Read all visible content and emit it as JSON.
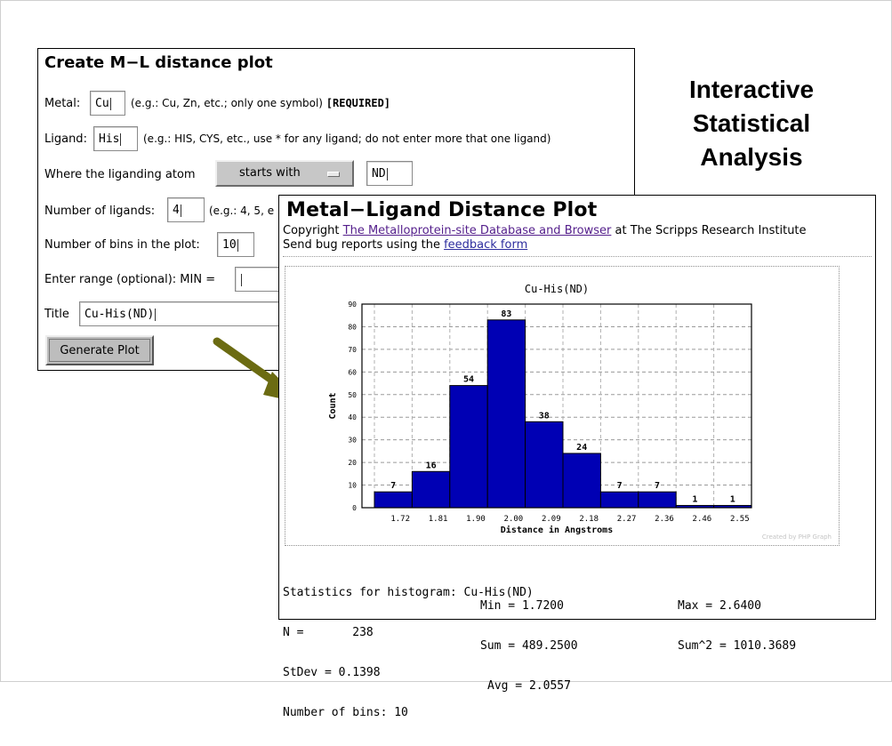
{
  "form": {
    "title": "Create M−L distance plot",
    "metal_label": "Metal:",
    "metal_value": "Cu",
    "metal_hint": "(e.g.: Cu, Zn, etc.; only one symbol)",
    "metal_required": "[REQUIRED]",
    "ligand_label": "Ligand:",
    "ligand_value": "His",
    "ligand_hint": "(e.g.: HIS, CYS, etc., use * for any ligand; do not enter more that one ligand)",
    "liganding_label": "Where the liganding atom",
    "liganding_select": "starts with",
    "liganding_value": "ND",
    "num_ligands_label": "Number of ligands:",
    "num_ligands_value": "4",
    "num_ligands_hint": "(e.g.: 4, 5, e",
    "bins_label": "Number of bins in the plot:",
    "bins_value": "10",
    "range_label": "Enter range (optional): MIN =",
    "range_min_value": "",
    "title_label": "Title",
    "title_value": "Cu-His(ND)",
    "generate_label": "Generate Plot"
  },
  "slide_title": {
    "line1": "Interactive",
    "line2": "Statistical",
    "line3": "Analysis"
  },
  "colors": {
    "arrow": "#6b6b12",
    "bar": "#0000b4",
    "link": "#2d2d9e",
    "visited_link": "#55208c"
  },
  "plot_page": {
    "title": "Metal−Ligand Distance Plot",
    "copyright_prefix": "Copyright ",
    "copyright_link": "The Metalloprotein-site Database and Browser",
    "copyright_suffix": " at The Scripps Research Institute",
    "bugs_prefix": "Send bug reports using the ",
    "bugs_link": "feedback form",
    "watermark": "Created by PHP Graph",
    "stats": {
      "heading": "Statistics for histogram: Cu-His(ND)",
      "n": "N =       238",
      "stdev": "StDev = 0.1398",
      "nbins": "Number of bins: 10",
      "min": "Min = 1.7200",
      "sum": "Sum = 489.2500",
      "avg": "Avg = 2.0557",
      "max": "Max = 2.6400",
      "sum2": "Sum^2 = 1010.3689"
    }
  },
  "chart_data": {
    "type": "bar",
    "title": "Cu-His(ND)",
    "xlabel": "Distance in Angstroms",
    "ylabel": "Count",
    "categories": [
      "1.72",
      "1.81",
      "1.90",
      "2.00",
      "2.09",
      "2.18",
      "2.27",
      "2.36",
      "2.46",
      "2.55"
    ],
    "values": [
      7,
      16,
      54,
      83,
      38,
      24,
      7,
      7,
      1,
      1
    ],
    "ylim": [
      0,
      90
    ],
    "yticks": [
      0,
      10,
      20,
      30,
      40,
      50,
      60,
      70,
      80,
      90
    ],
    "grid": true,
    "legend": "none"
  }
}
